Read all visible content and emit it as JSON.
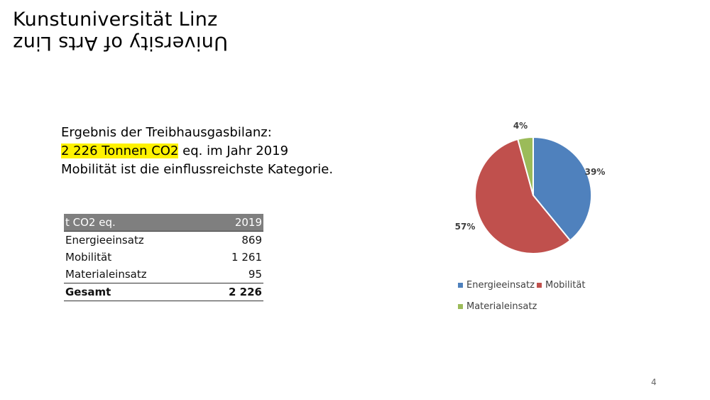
{
  "logo": {
    "line1": "Kunstuniversität Linz",
    "line2": "University of Arts Linz"
  },
  "summary": {
    "line1": "Ergebnis der Treibhausgasbilanz:",
    "line2_highlight": "2 226 Tonnen CO2",
    "line2_rest": " eq. im Jahr 2019",
    "line3": "Mobilität ist die einflussreichste Kategorie."
  },
  "table": {
    "header": [
      "t CO2 eq.",
      "2019"
    ],
    "rows": [
      {
        "label": "Energieeinsatz",
        "value": "869"
      },
      {
        "label": "Mobilität",
        "value": "1 261"
      },
      {
        "label": "Materialeinsatz",
        "value": "95"
      }
    ],
    "total": {
      "label": "Gesamt",
      "value": "2 226"
    }
  },
  "chart_data": {
    "type": "pie",
    "categories": [
      "Energieeinsatz",
      "Mobilität",
      "Materialeinsatz"
    ],
    "values": [
      869,
      1261,
      95
    ],
    "percent_labels": [
      "39%",
      "57%",
      "4%"
    ],
    "colors": [
      "#4f81bd",
      "#c0504d",
      "#9bbb59"
    ],
    "legend": "bottom"
  },
  "page_number": "4"
}
